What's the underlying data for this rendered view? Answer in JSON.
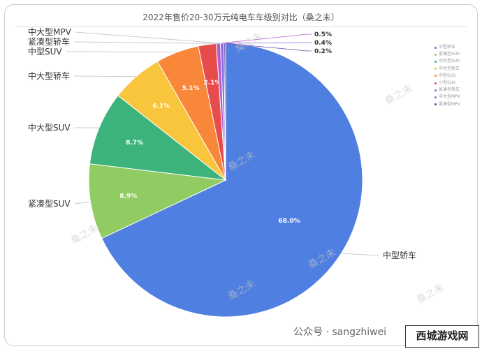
{
  "chart_data": {
    "type": "pie",
    "title": "2022年售价20-30万元纯电车车级别对比（桑之未）",
    "categories": [
      "中型轿车",
      "紧凑型SUV",
      "中大型SUV",
      "中大型轿车",
      "中型SUV",
      "小型SUV",
      "紧凑型轿车",
      "中大型MPV",
      "紧凑型MPV"
    ],
    "values": [
      68.0,
      8.9,
      8.7,
      6.1,
      5.1,
      2.1,
      0.5,
      0.4,
      0.2
    ],
    "data_labels": [
      "68.0%",
      "8.9%",
      "8.7%",
      "6.1%",
      "5.1%",
      "2.1%",
      "0.5%",
      "0.4%",
      "0.2%"
    ],
    "colors": [
      "#4f7fe0",
      "#91cc62",
      "#3cb37a",
      "#f8c53c",
      "#f8873a",
      "#e84b4b",
      "#b05fd0",
      "#8a6bd8",
      "#6b3fa8"
    ],
    "legend_position": "right"
  },
  "watermark": "桑之未",
  "footer": "公众号 · sangzhiwei",
  "logo": "西城游戏网"
}
